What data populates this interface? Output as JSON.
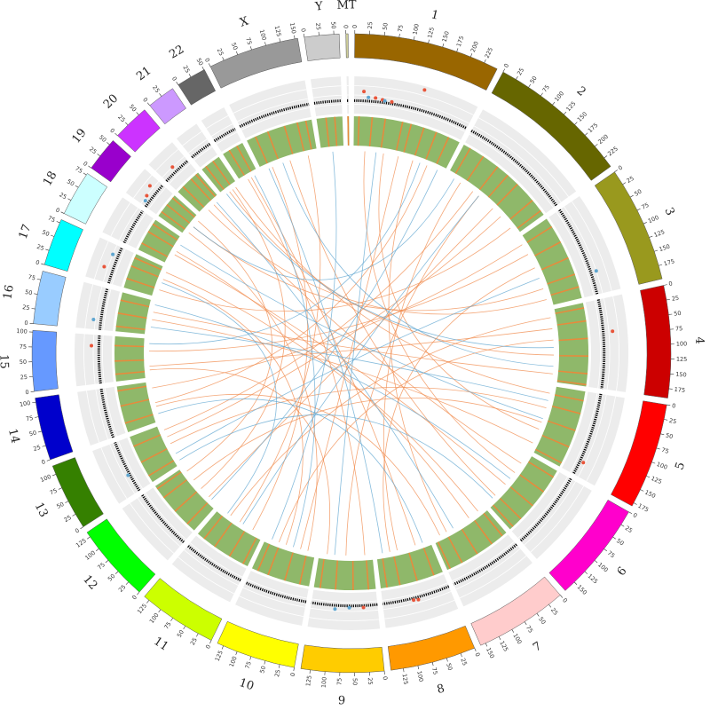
{
  "chart_data": {
    "type": "circos",
    "chromosomes": [
      {
        "name": "1",
        "color": "#996600",
        "length": 249,
        "ticks": [
          0,
          25,
          50,
          75,
          100,
          125,
          150,
          175,
          200,
          225
        ]
      },
      {
        "name": "2",
        "color": "#666600",
        "length": 243,
        "ticks": [
          0,
          25,
          50,
          75,
          100,
          125,
          150,
          175,
          200,
          225
        ]
      },
      {
        "name": "3",
        "color": "#99991e",
        "length": 198,
        "ticks": [
          0,
          25,
          50,
          75,
          100,
          125,
          150,
          175
        ]
      },
      {
        "name": "4",
        "color": "#cc0000",
        "length": 191,
        "ticks": [
          0,
          25,
          50,
          75,
          100,
          125,
          150,
          175
        ]
      },
      {
        "name": "5",
        "color": "#ff0000",
        "length": 181,
        "ticks": [
          0,
          25,
          50,
          75,
          100,
          125,
          150,
          175
        ]
      },
      {
        "name": "6",
        "color": "#ff00cc",
        "length": 171,
        "ticks": [
          0,
          25,
          50,
          75,
          100,
          125,
          150
        ]
      },
      {
        "name": "7",
        "color": "#ffcccc",
        "length": 159,
        "ticks": [
          0,
          25,
          50,
          75,
          100,
          125,
          150
        ]
      },
      {
        "name": "8",
        "color": "#ff9900",
        "length": 146,
        "ticks": [
          0,
          25,
          50,
          75,
          100,
          125
        ]
      },
      {
        "name": "9",
        "color": "#ffcc00",
        "length": 141,
        "ticks": [
          0,
          25,
          50,
          75,
          100,
          125
        ]
      },
      {
        "name": "10",
        "color": "#ffff00",
        "length": 136,
        "ticks": [
          0,
          25,
          50,
          75,
          100,
          125
        ]
      },
      {
        "name": "11",
        "color": "#ccff00",
        "length": 135,
        "ticks": [
          0,
          25,
          50,
          75,
          100,
          125
        ]
      },
      {
        "name": "12",
        "color": "#00ff00",
        "length": 134,
        "ticks": [
          0,
          25,
          50,
          75,
          100,
          125
        ]
      },
      {
        "name": "13",
        "color": "#358000",
        "length": 115,
        "ticks": [
          0,
          25,
          50,
          75,
          100
        ]
      },
      {
        "name": "14",
        "color": "#0000cc",
        "length": 107,
        "ticks": [
          0,
          25,
          50,
          75,
          100
        ]
      },
      {
        "name": "15",
        "color": "#6699ff",
        "length": 103,
        "ticks": [
          0,
          25,
          50,
          75,
          100
        ]
      },
      {
        "name": "16",
        "color": "#99ccff",
        "length": 90,
        "ticks": [
          0,
          25,
          50,
          75
        ]
      },
      {
        "name": "17",
        "color": "#00ffff",
        "length": 81,
        "ticks": [
          0,
          25,
          50,
          75
        ]
      },
      {
        "name": "18",
        "color": "#ccffff",
        "length": 78,
        "ticks": [
          0,
          25,
          50,
          75
        ]
      },
      {
        "name": "19",
        "color": "#9900cc",
        "length": 59,
        "ticks": [
          0,
          25,
          50
        ]
      },
      {
        "name": "20",
        "color": "#cc33ff",
        "length": 63,
        "ticks": [
          0,
          25,
          50
        ]
      },
      {
        "name": "21",
        "color": "#cc99ff",
        "length": 48,
        "ticks": [
          0,
          25
        ]
      },
      {
        "name": "22",
        "color": "#666666",
        "length": 51,
        "ticks": [
          0,
          25,
          50
        ]
      },
      {
        "name": "X",
        "color": "#999999",
        "length": 155,
        "ticks": [
          0,
          25,
          50,
          75,
          100,
          125,
          150
        ]
      },
      {
        "name": "Y",
        "color": "#cccccc",
        "length": 59,
        "ticks": [
          0,
          25,
          50
        ]
      },
      {
        "name": "MT",
        "color": "#cccc99",
        "length": 0.0166,
        "ticks": [
          0
        ]
      }
    ],
    "scatter": {
      "ylim": [
        0,
        1
      ],
      "baseline": [
        0.35,
        0.35,
        0.35,
        0.35,
        0.35,
        0.35,
        0.35,
        0.35,
        0.35,
        0.35,
        0.35,
        0.35,
        0.35,
        0.35,
        0.35,
        0.35,
        0.35,
        0.35,
        0.35,
        0.35,
        0.35,
        0.35,
        0.35,
        0.35,
        0.35
      ],
      "series": [
        {
          "color": "#e8553a",
          "points": [
            [
              0,
              20,
              0.6
            ],
            [
              0,
              45,
              0.45
            ],
            [
              0,
              60,
              0.42
            ],
            [
              0,
              80,
              0.4
            ],
            [
              0,
              140,
              0.9
            ],
            [
              3,
              70,
              0.6
            ],
            [
              4,
              150,
              0.45
            ],
            [
              8,
              30,
              0.4
            ],
            [
              7,
              70,
              0.42
            ],
            [
              7,
              80,
              0.4
            ],
            [
              14,
              80,
              0.55
            ],
            [
              16,
              30,
              0.6
            ],
            [
              18,
              20,
              0.5
            ],
            [
              18,
              40,
              0.6
            ],
            [
              19,
              30,
              0.5
            ]
          ]
        },
        {
          "color": "#5fa6d0",
          "points": [
            [
              0,
              30,
              0.45
            ],
            [
              0,
              65,
              0.4
            ],
            [
              2,
              150,
              0.5
            ],
            [
              8,
              60,
              0.4
            ],
            [
              8,
              90,
              0.45
            ],
            [
              12,
              40,
              0.4
            ],
            [
              15,
              20,
              0.55
            ],
            [
              16,
              60,
              0.5
            ],
            [
              18,
              10,
              0.45
            ]
          ]
        }
      ]
    },
    "heatmap": {
      "colors": [
        "#8fb86a",
        "#e88a3c"
      ],
      "stripes": [
        [
          10,
          40,
          70,
          110,
          130,
          160,
          190,
          220
        ],
        [
          15,
          50,
          90,
          120,
          150,
          200,
          230
        ],
        [
          20,
          60,
          100,
          140,
          170
        ],
        [
          10,
          40,
          80,
          120,
          160,
          185
        ],
        [
          20,
          50,
          90,
          130,
          170
        ],
        [
          15,
          55,
          95,
          135,
          160
        ],
        [
          10,
          40,
          80,
          120,
          150
        ],
        [
          20,
          60,
          100,
          130
        ],
        [
          15,
          50,
          90,
          125
        ],
        [
          20,
          55,
          95,
          120
        ],
        [
          10,
          45,
          85,
          115
        ],
        [
          20,
          60,
          100,
          125
        ],
        [
          15,
          50,
          90
        ],
        [
          20,
          60,
          95
        ],
        [
          15,
          45,
          80
        ],
        [
          10,
          40,
          70
        ],
        [
          20,
          50,
          70
        ],
        [
          15,
          45,
          65
        ],
        [
          10,
          30,
          50
        ],
        [
          15,
          40,
          55
        ],
        [
          10,
          30
        ],
        [
          15,
          35
        ],
        [
          20,
          50,
          90,
          120,
          140
        ],
        [
          20,
          40
        ],
        [
          0.01
        ]
      ]
    },
    "links": [
      {
        "color": "#f08a4b",
        "pairs": [
          [
            0,
            30,
            5,
            60
          ],
          [
            0,
            120,
            9,
            40
          ],
          [
            0,
            200,
            13,
            50
          ],
          [
            1,
            40,
            7,
            90
          ],
          [
            1,
            150,
            11,
            30
          ],
          [
            1,
            220,
            16,
            20
          ],
          [
            2,
            50,
            14,
            70
          ],
          [
            2,
            150,
            18,
            30
          ],
          [
            3,
            20,
            10,
            100
          ],
          [
            3,
            120,
            20,
            20
          ],
          [
            4,
            60,
            12,
            60
          ],
          [
            4,
            160,
            15,
            40
          ],
          [
            5,
            30,
            19,
            40
          ],
          [
            5,
            140,
            22,
            80
          ],
          [
            6,
            50,
            17,
            40
          ],
          [
            6,
            120,
            0,
            160
          ],
          [
            7,
            40,
            21,
            30
          ],
          [
            7,
            110,
            2,
            90
          ],
          [
            8,
            70,
            1,
            100
          ],
          [
            9,
            100,
            3,
            80
          ],
          [
            10,
            30,
            22,
            30
          ],
          [
            11,
            90,
            4,
            100
          ],
          [
            12,
            80,
            1,
            180
          ],
          [
            13,
            40,
            6,
            140
          ],
          [
            14,
            20,
            8,
            120
          ],
          [
            15,
            60,
            3,
            170
          ],
          [
            16,
            50,
            9,
            80
          ],
          [
            17,
            30,
            5,
            100
          ],
          [
            18,
            50,
            11,
            120
          ],
          [
            19,
            20,
            2,
            180
          ],
          [
            20,
            40,
            4,
            20
          ],
          [
            21,
            20,
            8,
            20
          ],
          [
            22,
            130,
            10,
            70
          ],
          [
            0,
            80,
            4,
            120
          ],
          [
            1,
            80,
            12,
            100
          ],
          [
            3,
            50,
            14,
            30
          ],
          [
            6,
            20,
            16,
            70
          ],
          [
            9,
            20,
            18,
            10
          ],
          [
            11,
            60,
            20,
            30
          ],
          [
            13,
            90,
            2,
            20
          ]
        ]
      },
      {
        "color": "#5fa6d0",
        "pairs": [
          [
            0,
            60,
            8,
            100
          ],
          [
            0,
            180,
            14,
            90
          ],
          [
            1,
            100,
            10,
            60
          ],
          [
            2,
            120,
            12,
            30
          ],
          [
            3,
            150,
            22,
            60
          ],
          [
            4,
            90,
            17,
            60
          ],
          [
            5,
            80,
            15,
            80
          ],
          [
            6,
            100,
            19,
            50
          ],
          [
            7,
            20,
            13,
            20
          ],
          [
            9,
            60,
            21,
            40
          ],
          [
            10,
            110,
            16,
            40
          ],
          [
            11,
            20,
            0,
            230
          ],
          [
            12,
            10,
            5,
            150
          ],
          [
            18,
            30,
            1,
            20
          ],
          [
            22,
            20,
            7,
            130
          ],
          [
            23,
            30,
            9,
            120
          ],
          [
            15,
            20,
            4,
            40
          ],
          [
            20,
            10,
            3,
            100
          ]
        ]
      }
    ]
  }
}
